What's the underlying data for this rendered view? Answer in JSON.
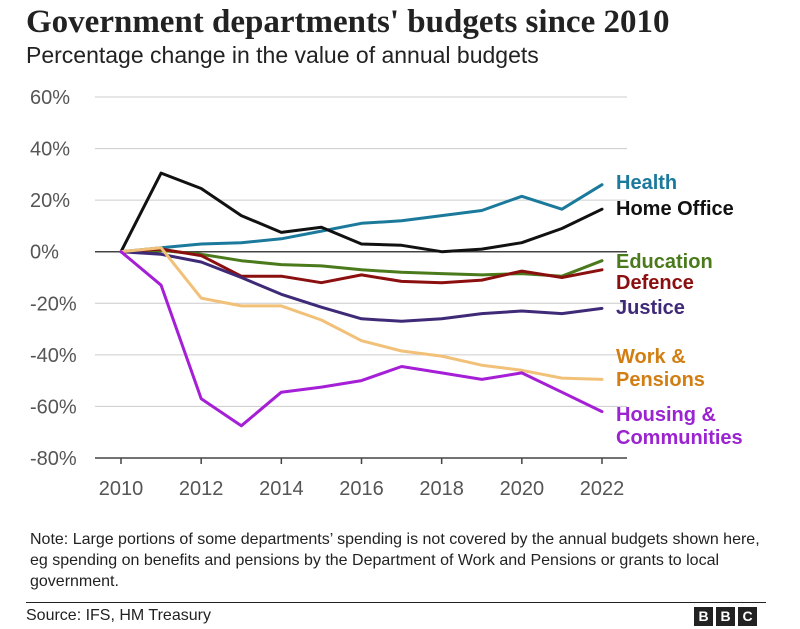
{
  "chart_data": {
    "type": "line",
    "title": "Government departments' budgets since 2010",
    "subtitle": "Percentage change in the value of annual budgets",
    "xlabel": "",
    "ylabel": "",
    "xlim": [
      2010,
      2022
    ],
    "ylim": [
      -80,
      60
    ],
    "x_ticks": [
      2010,
      2012,
      2014,
      2016,
      2018,
      2020,
      2022
    ],
    "x_tick_labels": [
      "2010",
      "2012",
      "2014",
      "2016",
      "2018",
      "2020",
      "2022"
    ],
    "y_ticks": [
      60,
      40,
      20,
      0,
      -20,
      -40,
      -60,
      -80
    ],
    "y_tick_labels": [
      "60%",
      "40%",
      "20%",
      "0%",
      "-20%",
      "-40%",
      "-60%",
      "-80%"
    ],
    "grid": true,
    "x": [
      2010,
      2011,
      2012,
      2013,
      2014,
      2015,
      2016,
      2017,
      2018,
      2019,
      2020,
      2021,
      2022
    ],
    "series": [
      {
        "name": "Health",
        "label_lines": [
          "Health"
        ],
        "color": "#1b7a9c",
        "values": [
          0,
          1.5,
          3,
          3.5,
          5,
          8,
          11,
          12,
          14,
          16,
          21.5,
          16.5,
          26
        ]
      },
      {
        "name": "Home Office",
        "label_lines": [
          "Home Office"
        ],
        "color": "#111111",
        "values": [
          0,
          30.5,
          24.5,
          14,
          7.5,
          9.5,
          3,
          2.5,
          0,
          1,
          3.5,
          9,
          16.5
        ]
      },
      {
        "name": "Education",
        "label_lines": [
          "Education"
        ],
        "color": "#4a7a1c",
        "values": [
          0,
          0.5,
          -1,
          -3.5,
          -5,
          -5.5,
          -7,
          -8,
          -8.5,
          -9,
          -8.5,
          -9.5,
          -3.5
        ]
      },
      {
        "name": "Defence",
        "label_lines": [
          "Defence"
        ],
        "color": "#8b0f0f",
        "values": [
          0,
          1,
          -1.5,
          -9.5,
          -9.5,
          -12,
          -9,
          -11.5,
          -12,
          -11,
          -7.5,
          -10,
          -7
        ]
      },
      {
        "name": "Justice",
        "label_lines": [
          "Justice"
        ],
        "color": "#3f2a78",
        "values": [
          0,
          -1,
          -4,
          -10,
          -16.5,
          -21.5,
          -26,
          -27,
          -26,
          -24,
          -23,
          -24,
          -22
        ]
      },
      {
        "name": "Work & Pensions",
        "label_lines": [
          "Work &",
          "Pensions"
        ],
        "color": "#f2c179",
        "label_color": "#d27e13",
        "values": [
          0,
          1.5,
          -18,
          -21,
          -21,
          -26.5,
          -34.5,
          -38.5,
          -40.5,
          -44,
          -46,
          -49,
          -49.5
        ]
      },
      {
        "name": "Housing & Communities",
        "label_lines": [
          "Housing &",
          "Communities"
        ],
        "color": "#a51fd6",
        "label_color": "#9b23d1",
        "values": [
          0,
          -13,
          -57,
          -67.5,
          -54.5,
          -52.5,
          -50,
          -44.5,
          -47,
          -49.5,
          -47,
          -54.5,
          -62
        ]
      }
    ],
    "note": "Note: Large portions of some departments’ spending is not covered by the annual budgets shown here, eg spending on benefits and pensions by the Department of Work and Pensions or grants to local government.",
    "source": "Source: IFS, HM Treasury",
    "logo_letters": [
      "B",
      "B",
      "C"
    ]
  }
}
